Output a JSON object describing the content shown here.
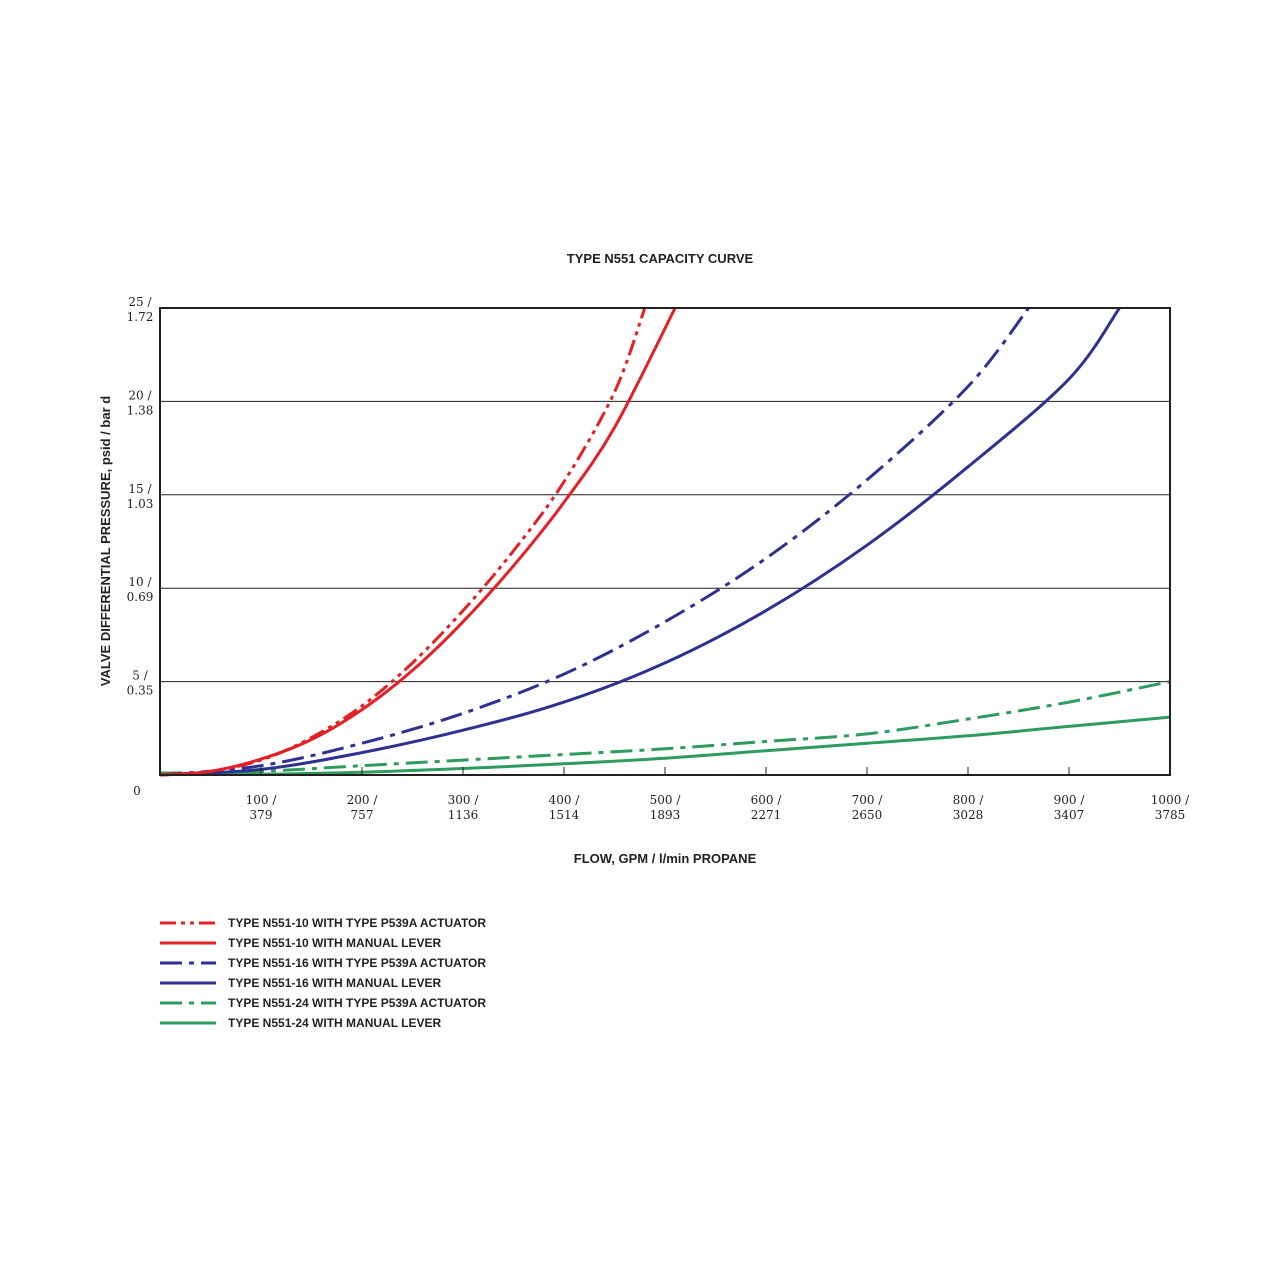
{
  "chart_data": {
    "type": "line",
    "title": "TYPE N551 CAPACITY CURVE",
    "xlabel": "FLOW, GPM / l/min PROPANE",
    "ylabel": "VALVE DIFFERENTIAL PRESSURE, psid / bar d",
    "xlim": [
      0,
      1000
    ],
    "ylim": [
      0,
      25
    ],
    "grid": "horizontal",
    "legend_position": "bottom-left",
    "y_zero_label": "0",
    "x_ticks": [
      {
        "value": 100,
        "line1": "100 /",
        "line2": "379"
      },
      {
        "value": 200,
        "line1": "200 /",
        "line2": "757"
      },
      {
        "value": 300,
        "line1": "300 /",
        "line2": "1136"
      },
      {
        "value": 400,
        "line1": "400 /",
        "line2": "1514"
      },
      {
        "value": 500,
        "line1": "500 /",
        "line2": "1893"
      },
      {
        "value": 600,
        "line1": "600 /",
        "line2": "2271"
      },
      {
        "value": 700,
        "line1": "700 /",
        "line2": "2650"
      },
      {
        "value": 800,
        "line1": "800 /",
        "line2": "3028"
      },
      {
        "value": 900,
        "line1": "900 /",
        "line2": "3407"
      },
      {
        "value": 1000,
        "line1": "1000 /",
        "line2": "3785"
      }
    ],
    "y_ticks": [
      {
        "value": 5,
        "line1": "5 /",
        "line2": "0.35"
      },
      {
        "value": 10,
        "line1": "10 /",
        "line2": "0.69"
      },
      {
        "value": 15,
        "line1": "15 /",
        "line2": "1.03"
      },
      {
        "value": 20,
        "line1": "20 /",
        "line2": "1.38"
      },
      {
        "value": 25,
        "line1": "25 /",
        "line2": "1.72"
      }
    ],
    "series": [
      {
        "name": "TYPE N551-10 WITH TYPE P539A ACTUATOR",
        "color": "#e41f26",
        "style": "dash-dot-dot",
        "x": [
          0,
          50,
          100,
          150,
          200,
          250,
          300,
          350,
          400,
          450,
          480
        ],
        "y": [
          0,
          0.2,
          0.8,
          2.0,
          3.7,
          6.0,
          8.8,
          12.0,
          15.7,
          20.5,
          25
        ]
      },
      {
        "name": "TYPE N551-10 WITH MANUAL LEVER",
        "color": "#e41f26",
        "style": "solid",
        "x": [
          0,
          50,
          100,
          150,
          200,
          250,
          300,
          350,
          400,
          450,
          510
        ],
        "y": [
          0,
          0.2,
          0.85,
          1.9,
          3.5,
          5.6,
          8.2,
          11.2,
          14.6,
          18.6,
          25
        ]
      },
      {
        "name": "TYPE N551-16 WITH TYPE P539A ACTUATOR",
        "color": "#2e3191",
        "style": "dash-dot",
        "x": [
          0,
          100,
          200,
          300,
          400,
          500,
          600,
          700,
          800,
          860
        ],
        "y": [
          0,
          0.5,
          1.7,
          3.3,
          5.4,
          8.2,
          11.6,
          15.8,
          20.8,
          25
        ]
      },
      {
        "name": "TYPE N551-16 WITH MANUAL LEVER",
        "color": "#2e3191",
        "style": "solid",
        "x": [
          0,
          100,
          200,
          300,
          400,
          500,
          600,
          700,
          800,
          900,
          950
        ],
        "y": [
          0,
          0.3,
          1.2,
          2.4,
          3.9,
          6.0,
          8.8,
          12.3,
          16.5,
          21.2,
          25
        ]
      },
      {
        "name": "TYPE N551-24 WITH TYPE P539A ACTUATOR",
        "color": "#2e9b5f",
        "style": "dash-dot",
        "x": [
          0,
          100,
          200,
          300,
          400,
          500,
          600,
          700,
          800,
          900,
          1000
        ],
        "y": [
          0.1,
          0.2,
          0.5,
          0.8,
          1.1,
          1.4,
          1.8,
          2.2,
          3.0,
          3.9,
          5.0
        ]
      },
      {
        "name": "TYPE N551-24 WITH MANUAL LEVER",
        "color": "#2e9b5f",
        "style": "solid",
        "x": [
          0,
          100,
          200,
          300,
          400,
          500,
          600,
          700,
          800,
          900,
          1000
        ],
        "y": [
          0.1,
          0.05,
          0.15,
          0.35,
          0.6,
          0.9,
          1.3,
          1.7,
          2.1,
          2.6,
          3.1
        ]
      }
    ]
  }
}
